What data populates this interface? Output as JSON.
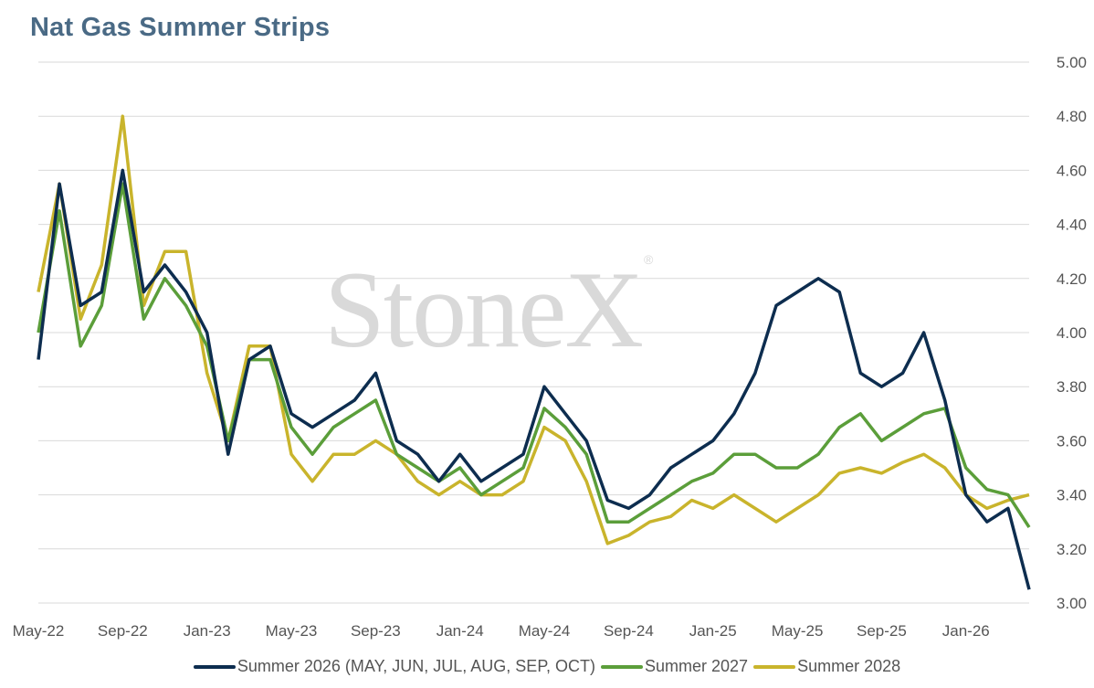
{
  "title": "Nat Gas Summer Strips",
  "watermark": "StoneX",
  "watermark_mark": "®",
  "colors": {
    "s2026": "#0d2d4f",
    "s2027": "#5b9e3a",
    "s2028": "#c9b42c",
    "grid": "#d9d9d9",
    "title": "#4a6a85"
  },
  "chart_data": {
    "type": "line",
    "title": "Nat Gas Summer Strips",
    "xlabel": "",
    "ylabel": "",
    "y_axis_side": "right",
    "ylim": [
      3.0,
      5.0
    ],
    "y_ticks": [
      "3.00",
      "3.20",
      "3.40",
      "3.60",
      "3.80",
      "4.00",
      "4.20",
      "4.40",
      "4.60",
      "4.80",
      "5.00"
    ],
    "x_tick_labels": [
      "May-22",
      "Sep-22",
      "Jan-23",
      "May-23",
      "Sep-23",
      "Jan-24",
      "May-24",
      "Sep-24",
      "Jan-25",
      "May-25",
      "Sep-25",
      "Jan-26"
    ],
    "x_range": [
      "2022-05",
      "2026-04"
    ],
    "grid": true,
    "legend_position": "bottom",
    "x": [
      "2022-05",
      "2022-06",
      "2022-07",
      "2022-08",
      "2022-09",
      "2022-10",
      "2022-11",
      "2022-12",
      "2023-01",
      "2023-02",
      "2023-03",
      "2023-04",
      "2023-05",
      "2023-06",
      "2023-07",
      "2023-08",
      "2023-09",
      "2023-10",
      "2023-11",
      "2023-12",
      "2024-01",
      "2024-02",
      "2024-03",
      "2024-04",
      "2024-05",
      "2024-06",
      "2024-07",
      "2024-08",
      "2024-09",
      "2024-10",
      "2024-11",
      "2024-12",
      "2025-01",
      "2025-02",
      "2025-03",
      "2025-04",
      "2025-05",
      "2025-06",
      "2025-07",
      "2025-08",
      "2025-09",
      "2025-10",
      "2025-11",
      "2025-12",
      "2026-01",
      "2026-02",
      "2026-03",
      "2026-04"
    ],
    "series": [
      {
        "name": "Summer 2026 (MAY, JUN, JUL, AUG, SEP, OCT)",
        "values": [
          3.9,
          4.55,
          4.1,
          4.15,
          4.6,
          4.15,
          4.25,
          4.15,
          4.0,
          3.55,
          3.9,
          3.95,
          3.7,
          3.65,
          3.7,
          3.75,
          3.85,
          3.6,
          3.55,
          3.45,
          3.55,
          3.45,
          3.5,
          3.55,
          3.8,
          3.7,
          3.6,
          3.38,
          3.35,
          3.4,
          3.5,
          3.55,
          3.6,
          3.7,
          3.85,
          4.1,
          4.15,
          4.2,
          4.15,
          3.85,
          3.8,
          3.85,
          4.0,
          3.75,
          3.4,
          3.3,
          3.35,
          3.05
        ]
      },
      {
        "name": "Summer 2027",
        "values": [
          4.0,
          4.45,
          3.95,
          4.1,
          4.55,
          4.05,
          4.2,
          4.1,
          3.95,
          3.6,
          3.9,
          3.9,
          3.65,
          3.55,
          3.65,
          3.7,
          3.75,
          3.55,
          3.5,
          3.45,
          3.5,
          3.4,
          3.45,
          3.5,
          3.72,
          3.65,
          3.55,
          3.3,
          3.3,
          3.35,
          3.4,
          3.45,
          3.48,
          3.55,
          3.55,
          3.5,
          3.5,
          3.55,
          3.65,
          3.7,
          3.6,
          3.65,
          3.7,
          3.72,
          3.5,
          3.42,
          3.4,
          3.28
        ]
      },
      {
        "name": "Summer 2028",
        "values": [
          4.15,
          4.55,
          4.05,
          4.25,
          4.8,
          4.1,
          4.3,
          4.3,
          3.85,
          3.6,
          3.95,
          3.95,
          3.55,
          3.45,
          3.55,
          3.55,
          3.6,
          3.55,
          3.45,
          3.4,
          3.45,
          3.4,
          3.4,
          3.45,
          3.65,
          3.6,
          3.45,
          3.22,
          3.25,
          3.3,
          3.32,
          3.38,
          3.35,
          3.4,
          3.35,
          3.3,
          3.35,
          3.4,
          3.48,
          3.5,
          3.48,
          3.52,
          3.55,
          3.5,
          3.4,
          3.35,
          3.38,
          3.4
        ]
      }
    ]
  }
}
